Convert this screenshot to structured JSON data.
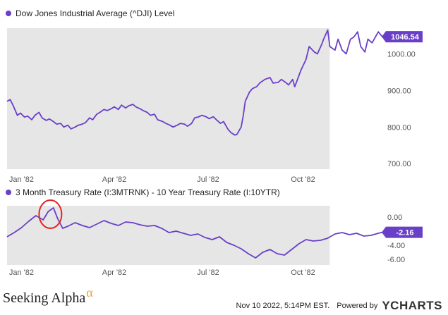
{
  "chart_data": [
    {
      "type": "line",
      "legend": "Dow Jones Industrial Average (^DJI) Level",
      "series": [
        {
          "name": "Dow Jones Industrial Average (^DJI) Level",
          "x": [
            "1982-01-01",
            "1982-01-04",
            "1982-01-07",
            "1982-01-11",
            "1982-01-14",
            "1982-01-18",
            "1982-01-21",
            "1982-01-25",
            "1982-01-28",
            "1982-02-01",
            "1982-02-04",
            "1982-02-08",
            "1982-02-11",
            "1982-02-15",
            "1982-02-18",
            "1982-02-22",
            "1982-02-25",
            "1982-03-01",
            "1982-03-04",
            "1982-03-08",
            "1982-03-11",
            "1982-03-15",
            "1982-03-18",
            "1982-03-22",
            "1982-03-25",
            "1982-03-29",
            "1982-04-01",
            "1982-04-05",
            "1982-04-08",
            "1982-04-12",
            "1982-04-15",
            "1982-04-19",
            "1982-04-22",
            "1982-04-26",
            "1982-04-29",
            "1982-05-03",
            "1982-05-06",
            "1982-05-10",
            "1982-05-13",
            "1982-05-17",
            "1982-05-20",
            "1982-05-24",
            "1982-05-27",
            "1982-06-01",
            "1982-06-04",
            "1982-06-08",
            "1982-06-11",
            "1982-06-15",
            "1982-06-18",
            "1982-06-22",
            "1982-06-25",
            "1982-06-29",
            "1982-07-02",
            "1982-07-06",
            "1982-07-09",
            "1982-07-13",
            "1982-07-16",
            "1982-07-20",
            "1982-07-23",
            "1982-07-27",
            "1982-07-30",
            "1982-08-03",
            "1982-08-06",
            "1982-08-10",
            "1982-08-12",
            "1982-08-16",
            "1982-08-18",
            "1982-08-20",
            "1982-08-24",
            "1982-08-27",
            "1982-08-31",
            "1982-09-03",
            "1982-09-08",
            "1982-09-13",
            "1982-09-16",
            "1982-09-21",
            "1982-09-24",
            "1982-09-29",
            "1982-10-01",
            "1982-10-05",
            "1982-10-07",
            "1982-10-11",
            "1982-10-13",
            "1982-10-18",
            "1982-10-21",
            "1982-10-26",
            "1982-10-29",
            "1982-11-02",
            "1982-11-04",
            "1982-11-08",
            "1982-11-10",
            "1982-11-15",
            "1982-11-18",
            "1982-11-22",
            "1982-11-26",
            "1982-11-30",
            "1982-12-03",
            "1982-12-07",
            "1982-12-10",
            "1982-12-14",
            "1982-12-17",
            "1982-12-21",
            "1982-12-27",
            "1982-12-31"
          ],
          "values": [
            870,
            875,
            858,
            832,
            838,
            827,
            830,
            820,
            832,
            840,
            825,
            818,
            822,
            815,
            808,
            810,
            800,
            805,
            795,
            800,
            805,
            808,
            812,
            825,
            820,
            835,
            840,
            848,
            845,
            850,
            855,
            848,
            860,
            852,
            858,
            862,
            855,
            850,
            845,
            840,
            832,
            835,
            820,
            815,
            810,
            805,
            800,
            805,
            810,
            808,
            802,
            810,
            825,
            828,
            832,
            828,
            823,
            828,
            820,
            810,
            815,
            795,
            785,
            778,
            780,
            800,
            830,
            870,
            895,
            905,
            910,
            920,
            930,
            935,
            920,
            922,
            930,
            920,
            915,
            930,
            910,
            940,
            955,
            985,
            1020,
            1005,
            1000,
            1025,
            1040,
            1065,
            1020,
            1010,
            1040,
            1010,
            1000,
            1040,
            1045,
            1060,
            1020,
            1005,
            1040,
            1030,
            1060,
            1046.54
          ]
        }
      ],
      "y_ticks": [
        "700.00",
        "800.00",
        "900.00",
        "1000.00"
      ],
      "ylim": [
        685,
        1070
      ],
      "last_value_label": "1046.54",
      "x_ticks": [
        {
          "label": "Jan '82",
          "date": "1982-01-15"
        },
        {
          "label": "Apr '82",
          "date": "1982-04-15"
        },
        {
          "label": "Jul '82",
          "date": "1982-07-15"
        },
        {
          "label": "Oct '82",
          "date": "1982-10-15"
        }
      ],
      "shaded_until": "1982-11-10",
      "grid": false,
      "xlim": [
        "1982-01-01",
        "1982-12-31"
      ]
    },
    {
      "type": "line",
      "legend": "3 Month Treasury Rate (I:3MTRNK) - 10 Year Treasury Rate (I:10YTR)",
      "series": [
        {
          "name": "3 Month Treasury Rate (I:3MTRNK) - 10 Year Treasury Rate (I:10YTR)",
          "x": [
            "1982-01-01",
            "1982-01-08",
            "1982-01-15",
            "1982-01-22",
            "1982-01-29",
            "1982-02-05",
            "1982-02-10",
            "1982-02-15",
            "1982-02-19",
            "1982-02-24",
            "1982-03-01",
            "1982-03-08",
            "1982-03-15",
            "1982-03-22",
            "1982-03-29",
            "1982-04-05",
            "1982-04-12",
            "1982-04-19",
            "1982-04-26",
            "1982-05-03",
            "1982-05-10",
            "1982-05-17",
            "1982-05-24",
            "1982-05-31",
            "1982-06-07",
            "1982-06-14",
            "1982-06-21",
            "1982-06-28",
            "1982-07-05",
            "1982-07-12",
            "1982-07-19",
            "1982-07-26",
            "1982-08-02",
            "1982-08-09",
            "1982-08-16",
            "1982-08-23",
            "1982-08-30",
            "1982-09-06",
            "1982-09-13",
            "1982-09-20",
            "1982-09-27",
            "1982-10-04",
            "1982-10-11",
            "1982-10-18",
            "1982-10-25",
            "1982-11-01",
            "1982-11-08",
            "1982-11-15",
            "1982-11-22",
            "1982-11-29",
            "1982-12-06",
            "1982-12-13",
            "1982-12-20",
            "1982-12-27",
            "1982-12-31"
          ],
          "values": [
            -2.8,
            -2.2,
            -1.5,
            -0.6,
            0.2,
            -0.4,
            0.8,
            1.3,
            -0.2,
            -1.6,
            -1.3,
            -0.8,
            -1.2,
            -1.5,
            -1.0,
            -0.5,
            -0.9,
            -1.2,
            -0.7,
            -0.8,
            -1.1,
            -1.3,
            -1.2,
            -1.6,
            -2.2,
            -2.0,
            -2.3,
            -2.6,
            -2.4,
            -2.9,
            -3.2,
            -2.8,
            -3.6,
            -4.0,
            -4.5,
            -5.2,
            -5.8,
            -5.0,
            -4.6,
            -5.2,
            -5.4,
            -4.6,
            -3.8,
            -3.2,
            -3.4,
            -3.3,
            -3.0,
            -2.4,
            -2.2,
            -2.5,
            -2.3,
            -2.7,
            -2.6,
            -2.3,
            -2.16
          ]
        }
      ],
      "y_ticks": [
        "0.00",
        "-2.00",
        "-4.00",
        "-6.00"
      ],
      "ylim": [
        -6.8,
        1.6
      ],
      "last_value_label": "-2.16",
      "x_ticks": [
        {
          "label": "Jan '82",
          "date": "1982-01-15"
        },
        {
          "label": "Apr '82",
          "date": "1982-04-15"
        },
        {
          "label": "Jul '82",
          "date": "1982-07-15"
        },
        {
          "label": "Oct '82",
          "date": "1982-10-15"
        }
      ],
      "shaded_until": "1982-11-10",
      "grid": false,
      "xlim": [
        "1982-01-01",
        "1982-12-31"
      ],
      "highlight_date": "1982-02-12",
      "highlight_value": 0.4
    }
  ],
  "colors": {
    "line": "#6a3fc8",
    "shade": "#e6e6e6",
    "circle": "#e02424"
  },
  "footer": {
    "source": "Seeking Alpha",
    "source_mark": "α",
    "timestamp": "Nov 10 2022, 5:14PM EST.",
    "powered_by": "Powered by",
    "brand": "YCHARTS"
  }
}
